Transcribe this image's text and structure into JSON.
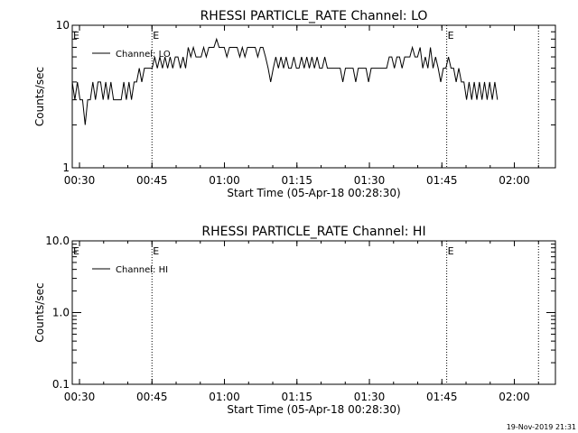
{
  "timestamp": "19-Nov-2019 21:31",
  "chart_data": [
    {
      "type": "line",
      "title": "RHESSI PARTICLE_RATE Channel: LO",
      "xlabel": "Start Time (05-Apr-18 00:28:30)",
      "ylabel": "Counts/sec",
      "yscale": "log",
      "xlim": [
        "00:28:30",
        "02:08:30"
      ],
      "ylim": [
        1,
        10
      ],
      "xticks": [
        "00:30",
        "00:45",
        "01:00",
        "01:15",
        "01:30",
        "01:45",
        "02:00"
      ],
      "yticks": [
        "1",
        "10"
      ],
      "legend_position": "top-left",
      "grid": false,
      "event_lines": [
        {
          "x": "00:45:00",
          "label": "E"
        },
        {
          "x": "01:46:00",
          "label": "E"
        },
        {
          "x": "02:05:00",
          "label": ""
        }
      ],
      "series": [
        {
          "name": "Channel: LO",
          "color": "#000000",
          "x_start": "00:28:30",
          "x_step_seconds": 32,
          "values": [
            4,
            3,
            4,
            3,
            3,
            2,
            3,
            3,
            4,
            3,
            4,
            4,
            3,
            4,
            3,
            4,
            3,
            3,
            3,
            3,
            4,
            3,
            4,
            3,
            4,
            4,
            5,
            4,
            5,
            5,
            5,
            5,
            6,
            5,
            6,
            5,
            6,
            5,
            6,
            5,
            6,
            6,
            5,
            6,
            5,
            7,
            6,
            7,
            6,
            6,
            6,
            7,
            6,
            7,
            7,
            7,
            8,
            7,
            7,
            7,
            6,
            7,
            7,
            7,
            7,
            6,
            7,
            6,
            7,
            7,
            7,
            7,
            6,
            7,
            7,
            6,
            5,
            4,
            5,
            6,
            5,
            6,
            5,
            6,
            5,
            5,
            6,
            5,
            5,
            6,
            5,
            6,
            5,
            6,
            5,
            6,
            5,
            5,
            6,
            5,
            5,
            5,
            5,
            5,
            5,
            4,
            5,
            5,
            5,
            5,
            4,
            5,
            5,
            5,
            5,
            4,
            5,
            5,
            5,
            5,
            5,
            5,
            5,
            6,
            6,
            5,
            6,
            6,
            5,
            6,
            6,
            6,
            7,
            6,
            6,
            7,
            5,
            6,
            5,
            7,
            5,
            6,
            5,
            4,
            5,
            5,
            6,
            5,
            5,
            4,
            5,
            4,
            4,
            3,
            4,
            3,
            4,
            3,
            4,
            3,
            4,
            3,
            4,
            3,
            4,
            3
          ]
        }
      ]
    },
    {
      "type": "line",
      "title": "RHESSI PARTICLE_RATE Channel: HI",
      "xlabel": "Start Time (05-Apr-18 00:28:30)",
      "ylabel": "Counts/sec",
      "yscale": "log",
      "xlim": [
        "00:28:30",
        "02:08:30"
      ],
      "ylim": [
        0.1,
        10
      ],
      "xticks": [
        "00:30",
        "00:45",
        "01:00",
        "01:15",
        "01:30",
        "01:45",
        "02:00"
      ],
      "yticks": [
        "0.1",
        "1.0",
        "10.0"
      ],
      "legend_position": "top-left",
      "grid": false,
      "event_lines": [
        {
          "x": "00:45:00",
          "label": "E"
        },
        {
          "x": "01:46:00",
          "label": "E"
        },
        {
          "x": "02:05:00",
          "label": ""
        }
      ],
      "series": [
        {
          "name": "Channel: HI",
          "color": "#000000",
          "values": []
        }
      ]
    }
  ]
}
